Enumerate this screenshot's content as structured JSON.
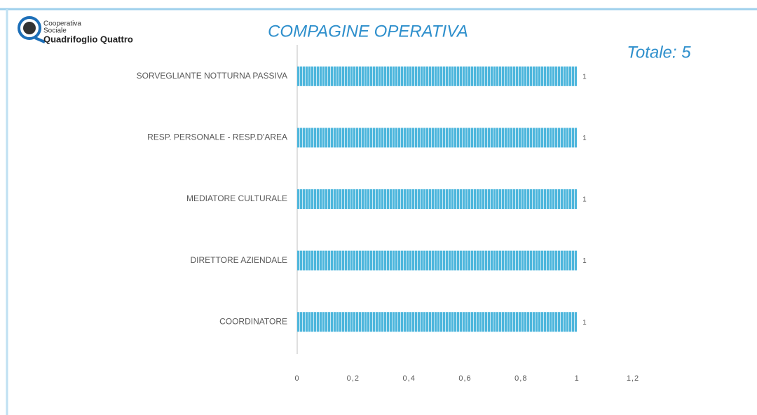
{
  "logo": {
    "lines": [
      "Cooperativa",
      "Sociale",
      "Quadrifoglio Quattro"
    ]
  },
  "chart_data": {
    "type": "hbar",
    "title": "COMPAGINE OPERATIVA",
    "annotations": [
      "Totale: 5"
    ],
    "categories": [
      "SORVEGLIANTE NOTTURNA PASSIVA",
      "RESP. PERSONALE - RESP.D'AREA",
      "MEDIATORE CULTURALE",
      "DIRETTORE AZIENDALE",
      "COORDINATORE"
    ],
    "values": [
      1,
      1,
      1,
      1,
      1
    ],
    "color": "#4db6dc",
    "xlim": [
      0,
      1.2
    ],
    "xticks": [
      0,
      {
        "value": 0.2,
        "label": "0,2"
      },
      {
        "value": 0.4,
        "label": "0,4"
      },
      {
        "value": 0.6,
        "label": "0,6"
      },
      {
        "value": 0.8,
        "label": "0,8"
      },
      1,
      {
        "value": 1.2,
        "label": "1,2"
      }
    ],
    "grid": false
  }
}
